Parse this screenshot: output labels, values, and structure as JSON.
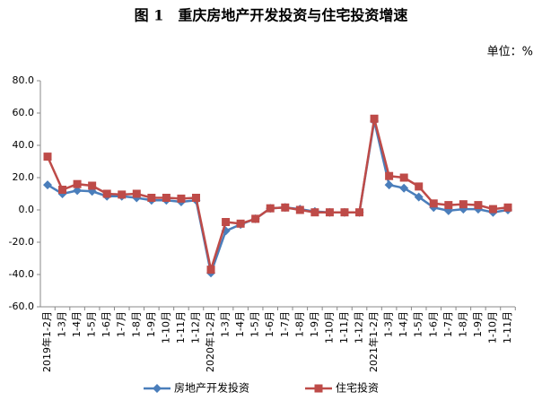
{
  "chart_data": {
    "type": "line",
    "title": "图 1　重庆房地产开发投资与住宅投资增速",
    "unit": "单位：%",
    "categories": [
      "2019年1-2月",
      "1-3月",
      "1-4月",
      "1-5月",
      "1-6月",
      "1-7月",
      "1-8月",
      "1-9月",
      "1-10月",
      "1-11月",
      "1-12月",
      "2020年1-2月",
      "1-3月",
      "1-4月",
      "1-5月",
      "1-6月",
      "1-7月",
      "1-8月",
      "1-9月",
      "1-10月",
      "1-11月",
      "1-12月",
      "2021年1-2月",
      "1-3月",
      "1-4月",
      "1-5月",
      "1-6月",
      "1-7月",
      "1-8月",
      "1-9月",
      "1-10月",
      "1-11月"
    ],
    "series": [
      {
        "name": "房地产开发投资",
        "color": "#4a7ebb",
        "marker": "diamond",
        "values": [
          15.5,
          10,
          12,
          11.5,
          8.5,
          8.5,
          7.5,
          6,
          6,
          5,
          6,
          -39,
          -13,
          -9,
          -5.5,
          1,
          1.5,
          0.5,
          -1,
          -1.5,
          -1.5,
          -1.5,
          55,
          15.5,
          13.5,
          8,
          1.5,
          -0.5,
          0.5,
          0.5,
          -1.5,
          0
        ]
      },
      {
        "name": "住宅投资",
        "color": "#be4b48",
        "marker": "square",
        "values": [
          33,
          12.5,
          16,
          15,
          10,
          9.5,
          10,
          7.5,
          7.5,
          7,
          7.5,
          -37,
          -7.5,
          -8.5,
          -5.5,
          1,
          1.5,
          0,
          -1.5,
          -1.5,
          -1.5,
          -1.5,
          56.5,
          21,
          20,
          14.5,
          4,
          3,
          3.5,
          3,
          0.5,
          1.5
        ]
      }
    ],
    "ylim": [
      -60,
      80
    ],
    "yticks": [
      {
        "value": 80,
        "label": "80.0"
      },
      {
        "value": 60,
        "label": "60.0"
      },
      {
        "value": 40,
        "label": "40.0"
      },
      {
        "value": 20,
        "label": "20.0"
      },
      {
        "value": 0,
        "label": "0.0"
      },
      {
        "value": -20,
        "label": "-20.0"
      },
      {
        "value": -40,
        "label": "-40.0"
      },
      {
        "value": -60,
        "label": "-60.0"
      }
    ],
    "grid": false
  }
}
